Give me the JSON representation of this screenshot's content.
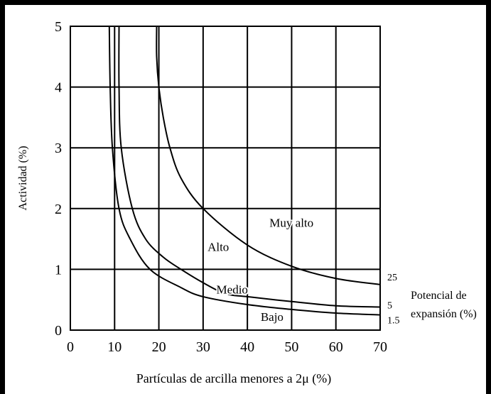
{
  "chart_data": {
    "type": "line",
    "title": "",
    "xlabel": "Partículas de arcilla menores a 2μ (%)",
    "ylabel": "Actividad (%)",
    "xlim": [
      0,
      70
    ],
    "ylim": [
      0,
      5
    ],
    "xticks": [
      0,
      10,
      20,
      30,
      40,
      50,
      60,
      70
    ],
    "yticks": [
      0,
      1,
      2,
      3,
      4,
      5
    ],
    "grid": true,
    "legend_title": "Potencial de expansión (%)",
    "series": [
      {
        "name": "Bajo",
        "end_value_label": "1.5",
        "points": [
          [
            8.8,
            5.0
          ],
          [
            9,
            4.0
          ],
          [
            9.5,
            3.0
          ],
          [
            11,
            2.0
          ],
          [
            13.5,
            1.5
          ],
          [
            18,
            1.0
          ],
          [
            25,
            0.7
          ],
          [
            30,
            0.55
          ],
          [
            40,
            0.42
          ],
          [
            50,
            0.34
          ],
          [
            60,
            0.28
          ],
          [
            70,
            0.25
          ]
        ]
      },
      {
        "name": "Medio",
        "end_value_label": "5",
        "points": [
          [
            11,
            5.0
          ],
          [
            11,
            4.0
          ],
          [
            11.5,
            3.0
          ],
          [
            14,
            2.0
          ],
          [
            17,
            1.5
          ],
          [
            21,
            1.2
          ],
          [
            25,
            1.0
          ],
          [
            30,
            0.78
          ],
          [
            35,
            0.6
          ],
          [
            40,
            0.55
          ],
          [
            50,
            0.47
          ],
          [
            60,
            0.4
          ],
          [
            70,
            0.38
          ]
        ]
      },
      {
        "name": "Alto",
        "end_value_label": "",
        "points": [
          [
            11,
            5.0
          ],
          [
            11,
            4.0
          ],
          [
            11.5,
            3.0
          ],
          [
            14,
            2.0
          ],
          [
            17,
            1.5
          ],
          [
            21,
            1.2
          ],
          [
            25,
            1.0
          ],
          [
            30,
            0.78
          ],
          [
            35,
            0.6
          ],
          [
            40,
            0.55
          ],
          [
            50,
            0.47
          ],
          [
            60,
            0.4
          ],
          [
            70,
            0.38
          ]
        ]
      },
      {
        "name": "Muy alto",
        "end_value_label": "25",
        "points": [
          [
            19.5,
            5.0
          ],
          [
            19.5,
            4.5
          ],
          [
            20,
            4.0
          ],
          [
            21,
            3.5
          ],
          [
            22.5,
            3.0
          ],
          [
            25,
            2.5
          ],
          [
            30,
            2.0
          ],
          [
            40,
            1.4
          ],
          [
            50,
            1.05
          ],
          [
            60,
            0.85
          ],
          [
            70,
            0.75
          ]
        ]
      }
    ],
    "annotations": [
      {
        "text": "Bajo",
        "x": 43,
        "y": 0.15
      },
      {
        "text": "Medio",
        "x": 33,
        "y": 0.6
      },
      {
        "text": "Alto",
        "x": 31,
        "y": 1.3
      },
      {
        "text": "Muy alto",
        "x": 45,
        "y": 1.7
      }
    ]
  }
}
